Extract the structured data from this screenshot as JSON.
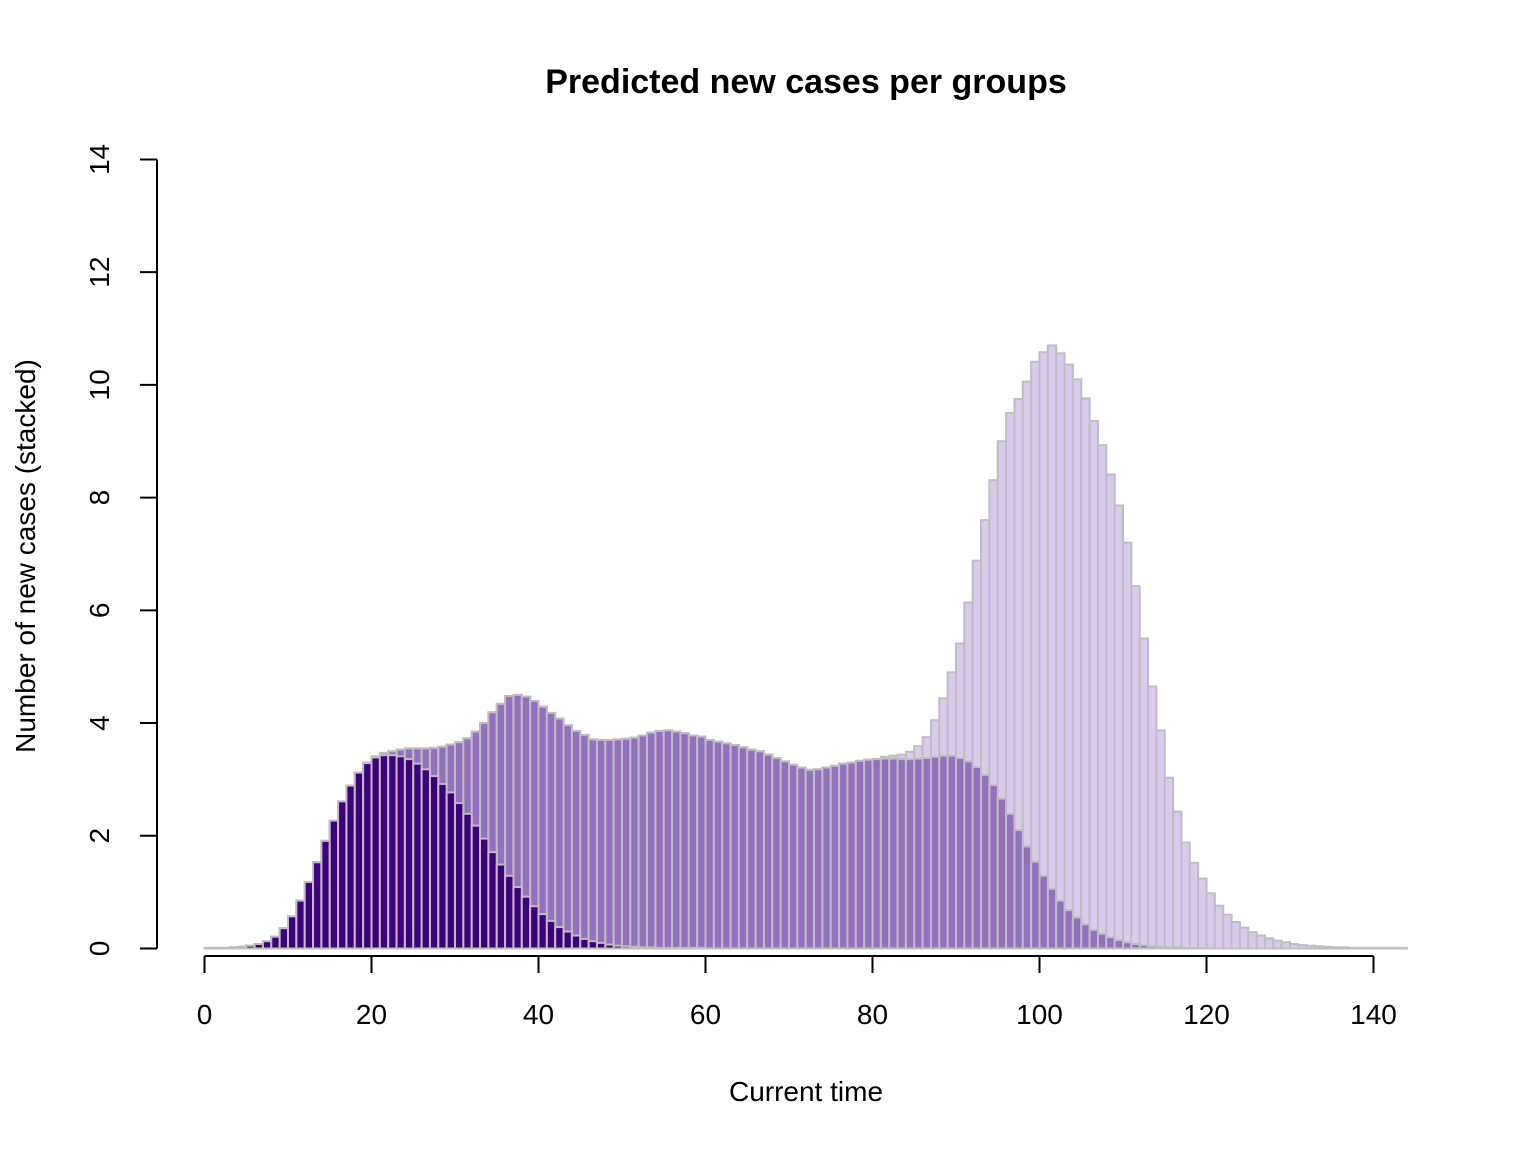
{
  "chart_data": {
    "type": "bar",
    "stacked": true,
    "title": "Predicted new cases per groups",
    "xlabel": "Current time",
    "ylabel": "Number of new cases (stacked)",
    "xlim": [
      0,
      144
    ],
    "ylim": [
      0,
      14
    ],
    "x_ticks": [
      0,
      20,
      40,
      60,
      80,
      100,
      120,
      140
    ],
    "y_ticks": [
      0,
      2,
      4,
      6,
      8,
      10,
      12,
      14
    ],
    "grid": false,
    "legend": "none",
    "bar_border_color": "#bebebe",
    "x": [
      1,
      2,
      3,
      4,
      5,
      6,
      7,
      8,
      9,
      10,
      11,
      12,
      13,
      14,
      15,
      16,
      17,
      18,
      19,
      20,
      21,
      22,
      23,
      24,
      25,
      26,
      27,
      28,
      29,
      30,
      31,
      32,
      33,
      34,
      35,
      36,
      37,
      38,
      39,
      40,
      41,
      42,
      43,
      44,
      45,
      46,
      47,
      48,
      49,
      50,
      51,
      52,
      53,
      54,
      55,
      56,
      57,
      58,
      59,
      60,
      61,
      62,
      63,
      64,
      65,
      66,
      67,
      68,
      69,
      70,
      71,
      72,
      73,
      74,
      75,
      76,
      77,
      78,
      79,
      80,
      81,
      82,
      83,
      84,
      85,
      86,
      87,
      88,
      89,
      90,
      91,
      92,
      93,
      94,
      95,
      96,
      97,
      98,
      99,
      100,
      101,
      102,
      103,
      104,
      105,
      106,
      107,
      108,
      109,
      110,
      111,
      112,
      113,
      114,
      115,
      116,
      117,
      118,
      119,
      120,
      121,
      122,
      123,
      124,
      125,
      126,
      127,
      128,
      129,
      130,
      131,
      132,
      133,
      134,
      135,
      136,
      137,
      138,
      139,
      140,
      141,
      142,
      143,
      144
    ],
    "series": [
      {
        "color": "#3f007d",
        "values": [
          0.01,
          0.01,
          0.01,
          0.02,
          0.03,
          0.05,
          0.08,
          0.13,
          0.21,
          0.36,
          0.57,
          0.85,
          1.18,
          1.53,
          1.91,
          2.27,
          2.61,
          2.89,
          3.12,
          3.29,
          3.39,
          3.43,
          3.43,
          3.41,
          3.36,
          3.28,
          3.18,
          3.06,
          2.92,
          2.77,
          2.58,
          2.39,
          2.18,
          1.95,
          1.71,
          1.49,
          1.29,
          1.09,
          0.92,
          0.75,
          0.61,
          0.49,
          0.38,
          0.3,
          0.23,
          0.17,
          0.13,
          0.1,
          0.07,
          0.05,
          0.04,
          0.03,
          0.02,
          0.02,
          0.01,
          0.01,
          0.01,
          0.01,
          0.01,
          0.01,
          0,
          0,
          0,
          0,
          0,
          0,
          0,
          0,
          0,
          0,
          0,
          0,
          0,
          0,
          0,
          0,
          0,
          0,
          0,
          0,
          0,
          0,
          0,
          0,
          0,
          0,
          0,
          0,
          0,
          0,
          0,
          0,
          0,
          0,
          0,
          0,
          0,
          0,
          0,
          0,
          0,
          0,
          0,
          0,
          0,
          0,
          0,
          0,
          0,
          0,
          0,
          0,
          0,
          0,
          0,
          0,
          0,
          0,
          0,
          0,
          0,
          0,
          0,
          0,
          0,
          0,
          0,
          0,
          0,
          0,
          0,
          0,
          0,
          0,
          0,
          0,
          0,
          0,
          0,
          0,
          0,
          0,
          0,
          0
        ]
      },
      {
        "color": "#9471c0",
        "values": [
          0,
          0,
          0,
          0,
          0,
          0,
          0,
          0,
          0,
          0,
          0,
          0,
          0,
          0,
          0,
          0,
          0,
          0,
          0,
          0.01,
          0.02,
          0.04,
          0.07,
          0.12,
          0.19,
          0.27,
          0.37,
          0.5,
          0.66,
          0.85,
          1.08,
          1.34,
          1.67,
          2.05,
          2.48,
          2.85,
          3.19,
          3.41,
          3.55,
          3.64,
          3.68,
          3.69,
          3.7,
          3.66,
          3.63,
          3.62,
          3.58,
          3.6,
          3.63,
          3.66,
          3.68,
          3.71,
          3.76,
          3.81,
          3.85,
          3.86,
          3.84,
          3.81,
          3.77,
          3.75,
          3.7,
          3.67,
          3.64,
          3.61,
          3.57,
          3.53,
          3.5,
          3.44,
          3.38,
          3.32,
          3.26,
          3.21,
          3.17,
          3.18,
          3.21,
          3.24,
          3.28,
          3.3,
          3.33,
          3.35,
          3.36,
          3.37,
          3.37,
          3.36,
          3.36,
          3.37,
          3.38,
          3.4,
          3.42,
          3.42,
          3.38,
          3.32,
          3.22,
          3.08,
          2.9,
          2.66,
          2.39,
          2.1,
          1.81,
          1.54,
          1.29,
          1.06,
          0.85,
          0.68,
          0.55,
          0.43,
          0.33,
          0.26,
          0.2,
          0.15,
          0.11,
          0.08,
          0.06,
          0.04,
          0.03,
          0.02,
          0.02,
          0.01,
          0.01,
          0.01,
          0,
          0,
          0,
          0,
          0,
          0,
          0,
          0,
          0,
          0,
          0,
          0,
          0,
          0,
          0,
          0,
          0,
          0,
          0,
          0,
          0,
          0,
          0,
          0
        ]
      },
      {
        "color": "#dacaee",
        "values": [
          0,
          0,
          0,
          0,
          0,
          0,
          0,
          0,
          0,
          0,
          0,
          0,
          0,
          0,
          0,
          0,
          0,
          0,
          0,
          0,
          0,
          0,
          0,
          0,
          0,
          0,
          0,
          0,
          0,
          0,
          0,
          0,
          0,
          0,
          0,
          0,
          0,
          0,
          0,
          0,
          0,
          0,
          0,
          0,
          0,
          0,
          0,
          0,
          0,
          0,
          0,
          0,
          0,
          0,
          0,
          0,
          0,
          0,
          0,
          0,
          0,
          0,
          0,
          0,
          0,
          0,
          0,
          0,
          0,
          0,
          0,
          0,
          0,
          0,
          0,
          0,
          0,
          0,
          0,
          0,
          0,
          0.03,
          0.05,
          0.08,
          0.13,
          0.22,
          0.37,
          0.65,
          1.02,
          1.48,
          2.03,
          2.82,
          3.66,
          4.52,
          5.41,
          6.34,
          7.11,
          7.65,
          8.25,
          8.87,
          9.29,
          9.64,
          9.71,
          9.68,
          9.55,
          9.33,
          9.03,
          8.67,
          8.21,
          7.71,
          7.09,
          6.35,
          5.44,
          4.61,
          3.84,
          3.01,
          2.41,
          1.87,
          1.51,
          1.23,
          0.98,
          0.76,
          0.6,
          0.47,
          0.37,
          0.29,
          0.23,
          0.18,
          0.14,
          0.11,
          0.08,
          0.06,
          0.05,
          0.04,
          0.03,
          0.02,
          0.02,
          0.01,
          0.01,
          0.01,
          0.01,
          0.01,
          0.01,
          0.01
        ]
      }
    ]
  }
}
